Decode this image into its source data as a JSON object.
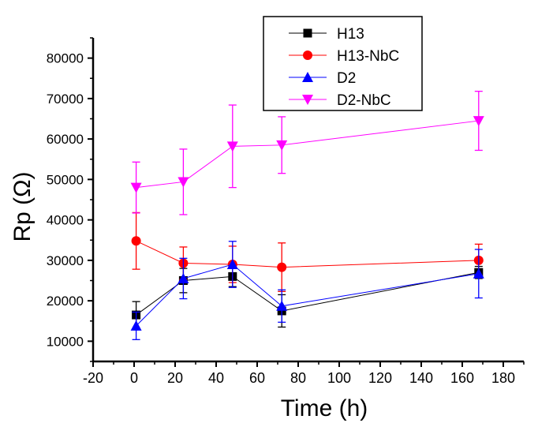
{
  "chart_data": {
    "type": "line",
    "title": "",
    "xlabel": "Time (h)",
    "ylabel": "Rp (Ω)",
    "xlim": [
      -20,
      190
    ],
    "ylim": [
      5000,
      85000
    ],
    "xticks": [
      -20,
      0,
      20,
      40,
      60,
      80,
      100,
      120,
      140,
      160,
      180
    ],
    "yticks": [
      10000,
      20000,
      30000,
      40000,
      50000,
      60000,
      70000,
      80000
    ],
    "grid": false,
    "legend_position": "top-right",
    "x": [
      1,
      24,
      48,
      72,
      168
    ],
    "series": [
      {
        "name": "H13",
        "color": "#000000",
        "marker": "square",
        "values": [
          16500,
          25000,
          26000,
          17500,
          27000
        ],
        "errors": [
          3300,
          3000,
          2500,
          4000,
          1500
        ]
      },
      {
        "name": "H13-NbC",
        "color": "#ff0000",
        "marker": "circle",
        "values": [
          34800,
          29300,
          29000,
          28300,
          30000
        ],
        "errors": [
          7000,
          4000,
          4500,
          6000,
          4000
        ]
      },
      {
        "name": "D2",
        "color": "#0000ff",
        "marker": "triangle-up",
        "values": [
          13800,
          25500,
          29000,
          18700,
          26700
        ],
        "errors": [
          3400,
          5000,
          5700,
          4000,
          6000
        ]
      },
      {
        "name": "D2-NbC",
        "color": "#ff00ff",
        "marker": "triangle-down",
        "values": [
          48000,
          49400,
          58200,
          58500,
          64500
        ],
        "errors": [
          6300,
          8100,
          10200,
          7000,
          7300
        ]
      }
    ]
  }
}
